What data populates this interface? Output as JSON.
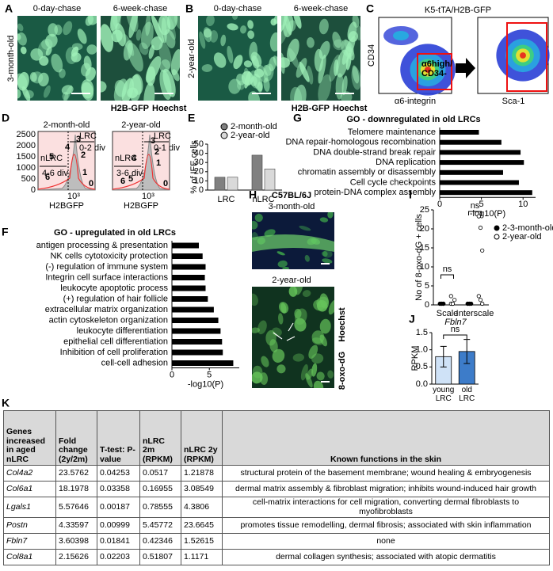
{
  "panels": {
    "A": {
      "letter": "A",
      "row_label": "3-month-old",
      "columns": [
        "0-day-chase",
        "6-week-chase"
      ],
      "stain": [
        "H2B-GFP",
        "Hoechst"
      ]
    },
    "B": {
      "letter": "B",
      "row_label": "2-year-old",
      "columns": [
        "0-day-chase",
        "6-week-chase"
      ],
      "stain": [
        "H2B-GFP",
        "Hoechst"
      ]
    },
    "C": {
      "letter": "C",
      "title": "K5-tTA/H2B-GFP",
      "ylabel": "CD34",
      "xlabel": "α6-integrin",
      "gate": [
        "α6high/",
        "CD34-"
      ],
      "xlabel2": "Sca-1"
    },
    "D": {
      "letter": "D",
      "titles": [
        "2-month-old",
        "2-year-old"
      ],
      "yticks": [
        2500,
        2000,
        1500,
        1000,
        500,
        0
      ],
      "xtick": "10³",
      "xlabel": "H2BGFP",
      "nlrc": [
        [
          "nLRC",
          "4-6 div"
        ],
        [
          "nLRC",
          "3-6 div"
        ]
      ],
      "lrc": [
        [
          "LRC",
          "0-2 div"
        ],
        [
          "LRC",
          "0-1 div"
        ]
      ],
      "divisions": [
        [
          3,
          4,
          2,
          5,
          6,
          1,
          0
        ],
        [
          3,
          2,
          4,
          1,
          5,
          6,
          0
        ]
      ]
    },
    "H": {
      "letter": "H",
      "title": "C57BL/6J",
      "rows": [
        "3-month-old",
        "2-year-old"
      ],
      "stain": [
        "8-oxo-dG",
        "Hoechst"
      ]
    },
    "K": {
      "letter": "K"
    }
  },
  "chart_data": [
    {
      "letter": "E",
      "type": "bar",
      "ylabel": "% of IFE cells",
      "categories": [
        "LRC",
        "nLRC"
      ],
      "series": [
        {
          "name": "2-month-old",
          "color": "#808080",
          "values": [
            14,
            38
          ]
        },
        {
          "name": "2-year-old",
          "color": "#d9d9d9",
          "values": [
            14,
            23
          ]
        }
      ],
      "ylim": [
        0,
        50
      ],
      "yticks": [
        0,
        10,
        20,
        30,
        40,
        50
      ]
    },
    {
      "letter": "F",
      "type": "barh",
      "title": "GO - upregulated in old LRCs",
      "categories": [
        "antigen processing & presentation",
        "NK cells cytotoxicity protection",
        "(-) regulation of immune system",
        "Integrin cell surface interactions",
        "leukocyte apoptotic process",
        "(+) regulation of hair follicle",
        "extracellular matrix organization",
        "actin cytoskeleton organization",
        "leukocyte differentiation",
        "epithelial cell differentiation",
        "Inhibition of cell proliferation",
        "cell-cell adhesion"
      ],
      "values": [
        3.6,
        4.1,
        4.5,
        4.4,
        4.5,
        4.8,
        5.6,
        6.2,
        6.5,
        6.7,
        6.8,
        8.2
      ],
      "color": "#000000",
      "xlim": [
        0,
        9
      ],
      "xticks": [
        0,
        5
      ],
      "xlabel": "-log10(P)"
    },
    {
      "letter": "G",
      "type": "barh",
      "title": "GO - downregulated in old LRCs",
      "categories": [
        "Telomere maintenance",
        "DNA repair-homologous recombination",
        "DNA double-strand break repair",
        "DNA replication",
        "chromatin assembly or disassembly",
        "Cell cycle checkpoints",
        "protein-DNA complex assembly"
      ],
      "values": [
        4.7,
        7.4,
        9.7,
        10.1,
        7.6,
        9.5,
        11.1
      ],
      "color": "#000000",
      "xlim": [
        0,
        11.5
      ],
      "xticks": [
        0,
        5,
        10
      ],
      "xlabel": "-log10(P)"
    },
    {
      "letter": "I",
      "type": "strip",
      "ylabel": "No of 8-oxo-dG + cells",
      "categories": [
        "Scale",
        "Interscale"
      ],
      "series": [
        {
          "name": "2-3-month-old",
          "color": "#000000",
          "filled": true,
          "values": [
            [
              0,
              0,
              0,
              0,
              0,
              0
            ],
            [
              0,
              0,
              0,
              0,
              0
            ]
          ]
        },
        {
          "name": "2-year-old",
          "color": "#000000",
          "filled": false,
          "values": [
            [
              0,
              0,
              1,
              2,
              0
            ],
            [
              23,
              20,
              14,
              2,
              1,
              0
            ]
          ]
        }
      ],
      "ylim": [
        0,
        25
      ],
      "yticks": [
        0,
        5,
        10,
        15,
        20,
        25
      ],
      "annotations": [
        "ns",
        "ns"
      ]
    },
    {
      "letter": "J",
      "type": "errbar",
      "title": "Fbln7",
      "ylabel": "RPKM",
      "categories": [
        "young LRC",
        "old LRC"
      ],
      "values": [
        0.8,
        0.95
      ],
      "errors": [
        0.3,
        0.35
      ],
      "colors": [
        "#cfe2f7",
        "#3d7cc9"
      ],
      "ylim": [
        0,
        1.5
      ],
      "yticks": [
        {
          "value": 0,
          "label": "0.0"
        },
        {
          "value": 0.5,
          "label": "0.5"
        },
        {
          "value": 1,
          "label": "1.0"
        },
        {
          "value": 1.5,
          "label": "1.5"
        }
      ],
      "annotations": [
        "ns"
      ]
    }
  ],
  "table": {
    "header": [
      "Genes increased in aged nLRC",
      "Fold change (2y/2m)",
      "T-test: P-value",
      "nLRC 2m (RPKM)",
      "nLRC 2y (RPKM)",
      "Known functions in the skin"
    ],
    "rows": [
      [
        "Col4a2",
        "23.5762",
        "0.04253",
        "0.0517",
        "1.21878",
        "structural protein of the basement membrane; wound healing & embryogenesis"
      ],
      [
        "Col6a1",
        "18.1978",
        "0.03358",
        "0.16955",
        "3.08549",
        "dermal matrix assembly & fibroblast migration; inhibits wound-induced hair growth"
      ],
      [
        "Lgals1",
        "5.57646",
        "0.00187",
        "0.78555",
        "4.3806",
        "cell-matrix interactions for cell migration, converting dermal fibroblasts to myofibroblasts"
      ],
      [
        "Postn",
        "4.33597",
        "0.00999",
        "5.45772",
        "23.6645",
        "promotes tissue remodelling, dermal fibrosis; associated with skin inflammation"
      ],
      [
        "Fbln7",
        "3.60398",
        "0.01841",
        "0.42346",
        "1.52615",
        "none"
      ],
      [
        "Col8a1",
        "2.15626",
        "0.02203",
        "0.51807",
        "1.1171",
        "dermal collagen synthesis; associated with atopic dermatitis"
      ]
    ]
  }
}
